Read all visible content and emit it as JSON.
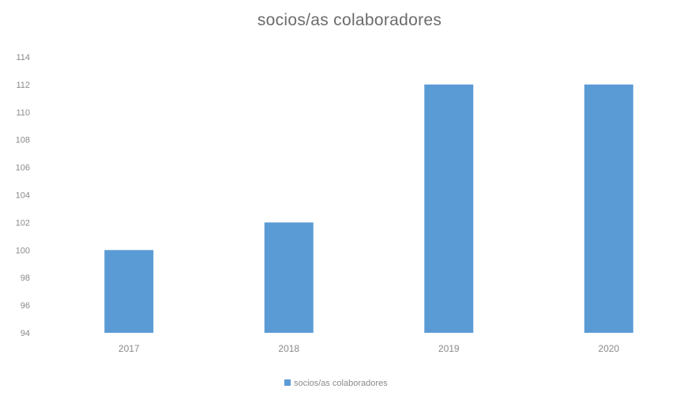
{
  "chart_data": {
    "type": "bar",
    "title": "socios/as colaboradores",
    "categories": [
      "2017",
      "2018",
      "2019",
      "2020"
    ],
    "series": [
      {
        "name": "socios/as colaboradores",
        "values": [
          100,
          102,
          112,
          112
        ]
      }
    ],
    "ylim": [
      94,
      114
    ],
    "yticks": [
      94,
      96,
      98,
      100,
      102,
      104,
      106,
      108,
      110,
      112,
      114
    ],
    "xlabel": "",
    "ylabel": "",
    "grid": false,
    "legend": "bottom",
    "colors": {
      "bar": "#5b9bd5",
      "text": "#8a8a8a",
      "title": "#6b6b6b"
    }
  }
}
